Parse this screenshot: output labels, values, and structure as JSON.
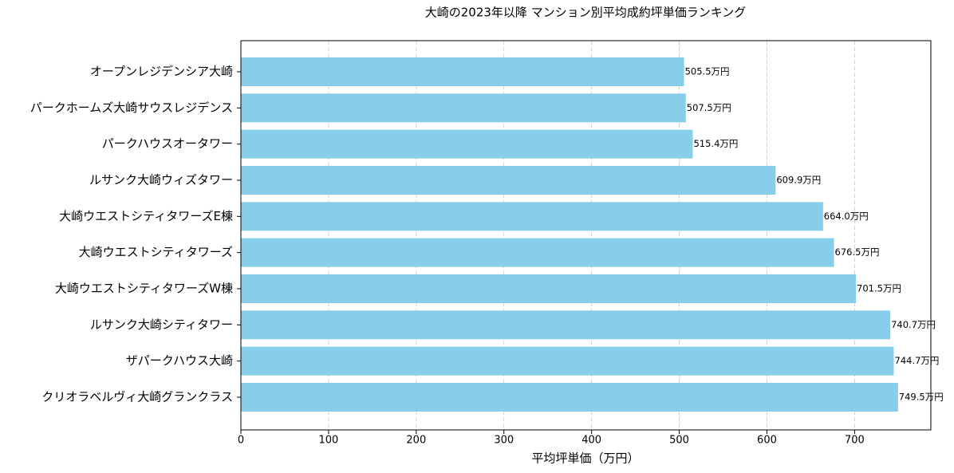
{
  "chart_data": {
    "type": "barh",
    "title": "大崎の2023年以降 マンション別平均成約坪単価ランキング",
    "x_label": "平均坪単価（万円）",
    "categories": [
      "オープンレジデンシア大崎",
      "パークホームズ大崎サウスレジデンス",
      "パークハウスオータワー",
      "ルサンク大崎ウィズタワー",
      "大崎ウエストシティタワーズE棟",
      "大崎ウエストシティタワーズ",
      "大崎ウエストシティタワーズW棟",
      "ルサンク大崎シティタワー",
      "ザパークハウス大崎",
      "クリオラベルヴィ大崎グランクラス"
    ],
    "values": [
      505.5,
      507.5,
      515.4,
      609.9,
      664.0,
      676.5,
      701.5,
      740.7,
      744.7,
      749.5
    ],
    "value_labels": [
      "505.5万円",
      "507.5万円",
      "515.4万円",
      "609.9万円",
      "664.0万円",
      "676.5万円",
      "701.5万円",
      "740.7万円",
      "744.7万円",
      "749.5万円"
    ],
    "color": "#87ceeb",
    "xlim": [
      0,
      787
    ],
    "xticks": [
      0,
      100,
      200,
      300,
      400,
      500,
      600,
      700
    ],
    "grid": true
  }
}
